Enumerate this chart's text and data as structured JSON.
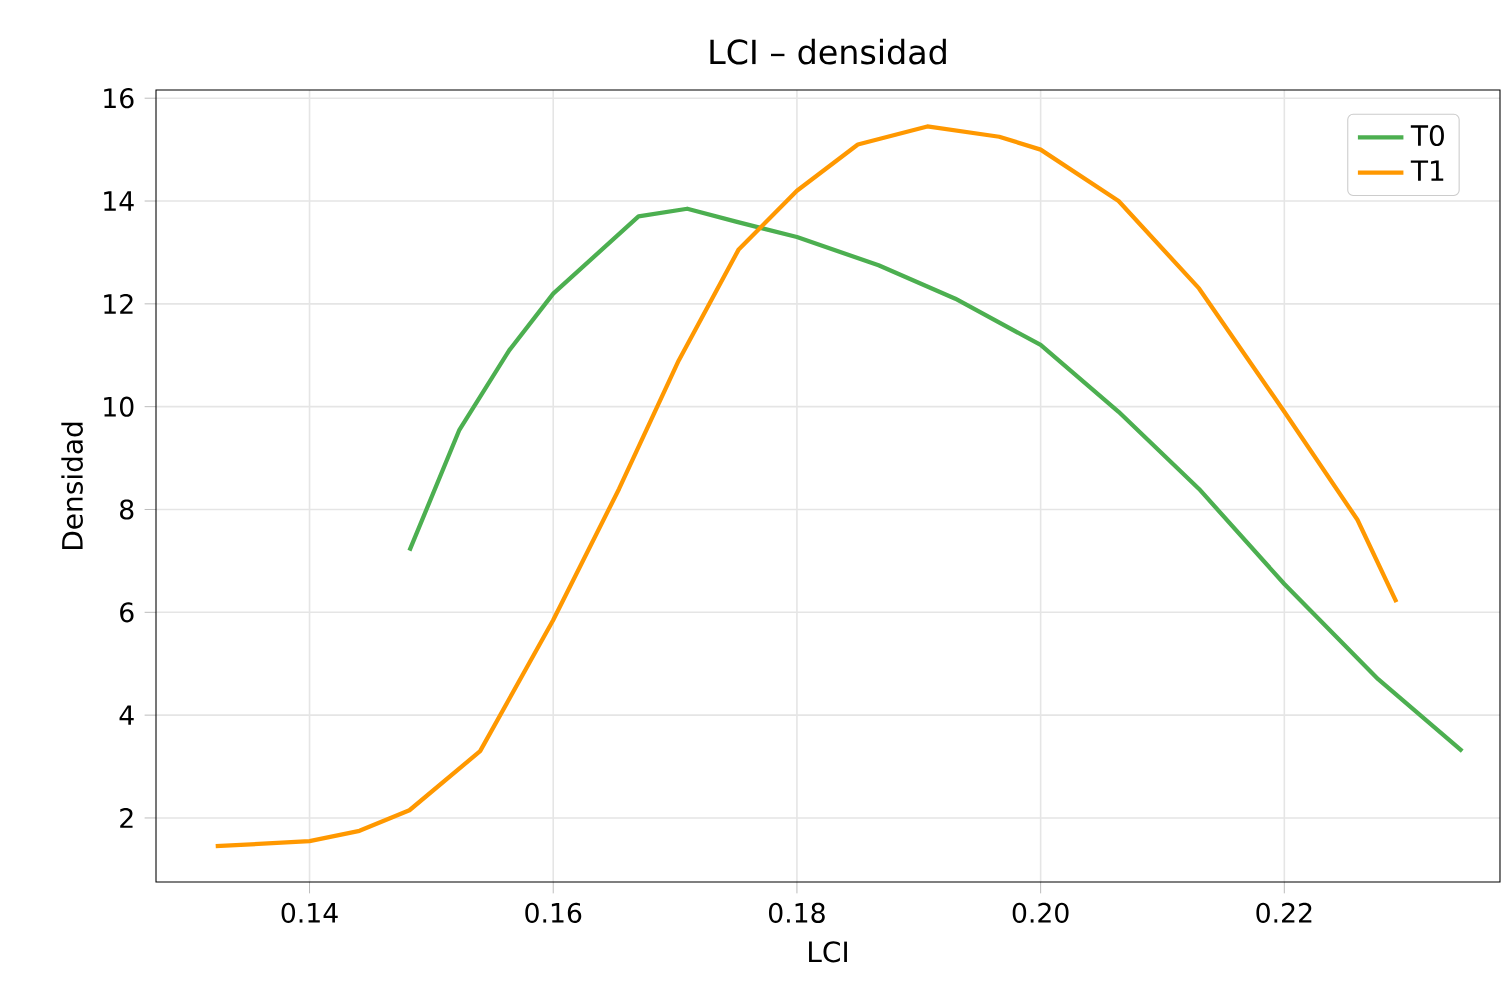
{
  "chart_data": {
    "type": "line",
    "title": "LCI – densidad",
    "xlabel": "LCI",
    "ylabel": "Densidad",
    "xlim": [
      0.1274,
      0.2377
    ],
    "ylim": [
      0.755,
      16.16
    ],
    "xticks": [
      0.14,
      0.16,
      0.18,
      {
        "value": 0.2,
        "label": "0.20"
      },
      0.22
    ],
    "yticks": [
      2,
      4,
      6,
      8,
      10,
      12,
      14,
      16
    ],
    "grid": true,
    "legend": "top right",
    "marker": "none",
    "line_style": "solid",
    "series": [
      {
        "name": "T0",
        "color": "#4caf50",
        "x": [
          0.1482,
          0.1523,
          0.1564,
          0.16,
          0.167,
          0.171,
          0.175,
          0.18,
          0.1867,
          0.193,
          0.2,
          0.2064,
          0.213,
          0.22,
          0.2277,
          0.2346
        ],
        "values": [
          7.2,
          9.55,
          11.1,
          12.2,
          13.7,
          13.85,
          13.6,
          13.3,
          12.75,
          12.1,
          11.2,
          9.9,
          8.4,
          6.55,
          4.7,
          3.3
        ]
      },
      {
        "name": "T1",
        "color": "#ff9800",
        "x": [
          0.1323,
          0.14,
          0.1441,
          0.1482,
          0.154,
          0.16,
          0.1654,
          0.1703,
          0.1752,
          0.18,
          0.185,
          0.1907,
          0.1966,
          0.2,
          0.2064,
          0.213,
          0.22,
          0.226,
          0.2292
        ],
        "values": [
          1.45,
          1.55,
          1.75,
          2.15,
          3.3,
          5.85,
          8.4,
          10.9,
          13.05,
          14.2,
          15.1,
          15.45,
          15.25,
          15.0,
          14.0,
          12.3,
          9.9,
          7.8,
          6.2
        ]
      }
    ]
  }
}
